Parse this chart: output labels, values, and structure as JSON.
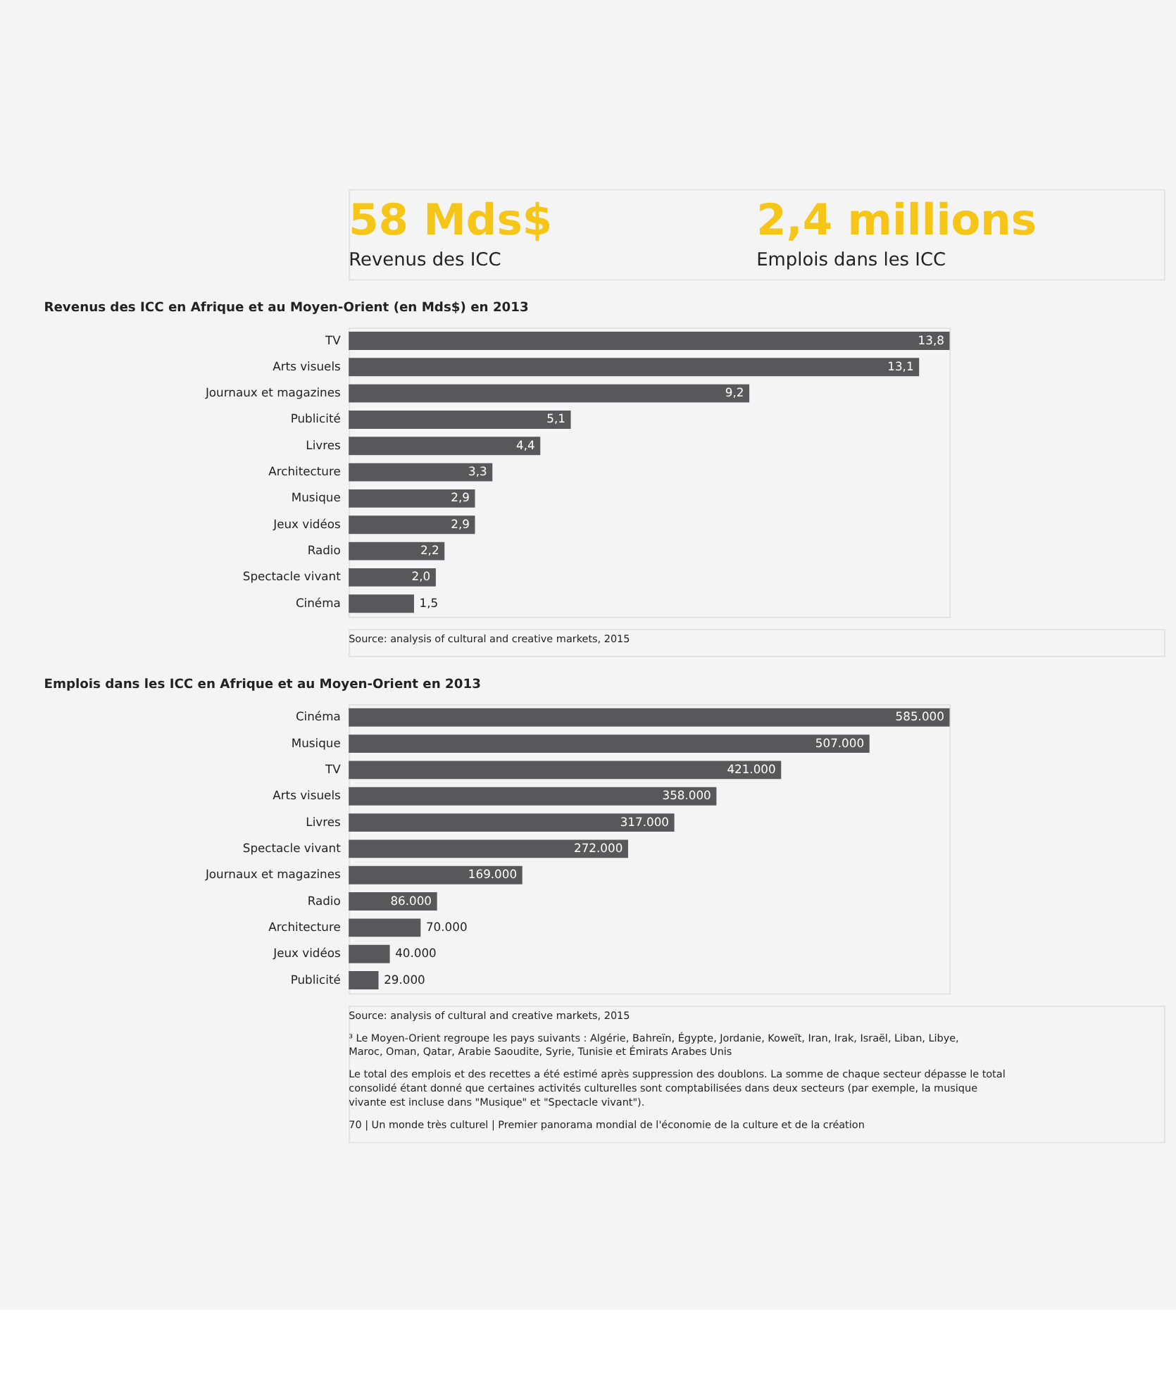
{
  "chart_data": [
    {
      "type": "other",
      "color": "#f5c518",
      "annotations": [
        "58 Mds$",
        "Revenus des ICC",
        "2,4 millions",
        "Emplois dans les ICC"
      ]
    },
    {
      "type": "bar",
      "orientation": "horizontal",
      "title": "Revenus des ICC en Afrique et au Moyen-Orient (en Mds$) en 2013",
      "color": "#58585a",
      "categories": [
        "TV",
        "Arts visuels",
        "Journaux et magazines",
        "Publicité",
        "Livres",
        "Architecture",
        "Musique",
        "Jeux vidéos",
        "Radio",
        "Spectacle vivant",
        "Cinéma"
      ],
      "values": [
        13.8,
        13.1,
        9.2,
        5.1,
        4.4,
        3.3,
        2.9,
        2.9,
        2.2,
        2.0,
        1.5
      ],
      "value_labels": [
        "13,8",
        "13,1",
        "9,2",
        "5,1",
        "4,4",
        "3,3",
        "2,9",
        "2,9",
        "2,2",
        "2,0",
        "1,5"
      ],
      "annotations": [
        "Source: analysis of cultural and creative markets, 2015"
      ]
    },
    {
      "type": "bar",
      "orientation": "horizontal",
      "title": "Emplois dans les ICC en Afrique et au Moyen-Orient en 2013",
      "color": "#58585a",
      "categories": [
        "Cinéma",
        "Musique",
        "TV",
        "Arts visuels",
        "Livres",
        "Spectacle vivant",
        "Journaux et magazines",
        "Radio",
        "Architecture",
        "Jeux vidéos",
        "Publicité"
      ],
      "values": [
        585000,
        507000,
        421000,
        358000,
        317000,
        272000,
        169000,
        86000,
        70000,
        40000,
        29000
      ],
      "value_labels": [
        "585.000",
        "507.000",
        "421.000",
        "358.000",
        "317.000",
        "272.000",
        "169.000",
        "86.000",
        "70.000",
        "40.000",
        "29.000"
      ],
      "annotations": [
        "Source: analysis of cultural and creative markets, 2015",
        "³ Le Moyen-Orient regroupe les pays suivants : Algérie, Bahreïn, Égypte, Jordanie, Koweït, Iran, Irak, Israël, Liban, Libye, Maroc, Oman, Qatar, Arabie Saoudite, Syrie, Tunisie et Émirats Arabes Unis",
        "Le total des emplois et des recettes a été estimé après suppression des doublons. La somme de chaque secteur dépasse le total consolidé étant donné que certaines activités culturelles sont comptabilisées dans deux secteurs (par exemple, la musique vivante est incluse dans \"Musique\" et \"Spectacle vivant\").",
        "70 | Un monde très culturel | Premier panorama mondial de l'économie de la culture et de la création"
      ]
    }
  ]
}
